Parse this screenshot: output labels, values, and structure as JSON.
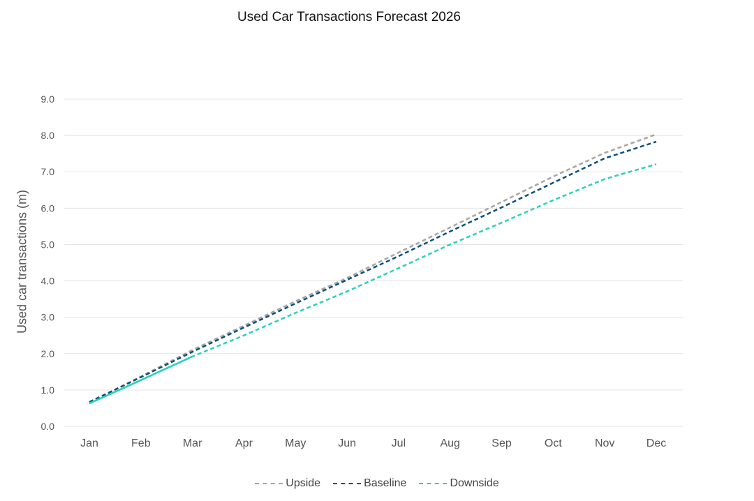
{
  "chart_data": {
    "type": "line",
    "title": "Used Car Transactions Forecast 2026",
    "xlabel": "",
    "ylabel": "Used car transactions (m)",
    "categories": [
      "Jan",
      "Feb",
      "Mar",
      "Apr",
      "May",
      "Jun",
      "Jul",
      "Aug",
      "Sep",
      "Oct",
      "Nov",
      "Dec"
    ],
    "ylim": [
      0,
      9
    ],
    "yticks": [
      "0.0",
      "1.0",
      "2.0",
      "3.0",
      "4.0",
      "5.0",
      "6.0",
      "7.0",
      "8.0",
      "9.0"
    ],
    "grid": true,
    "legend_position": "bottom",
    "actual": {
      "color": "#2ad1b8",
      "values": [
        0.63,
        1.27,
        1.92
      ]
    },
    "series": [
      {
        "name": "Upside",
        "color": "#a6a6a6",
        "values": [
          0.65,
          1.37,
          2.1,
          2.77,
          3.44,
          4.08,
          4.78,
          5.47,
          6.17,
          6.87,
          7.52,
          8.03
        ]
      },
      {
        "name": "Baseline",
        "color": "#0b4f7c",
        "values": [
          0.67,
          1.35,
          2.05,
          2.72,
          3.38,
          4.03,
          4.68,
          5.36,
          6.02,
          6.7,
          7.37,
          7.83
        ]
      },
      {
        "name": "Downside",
        "color": "#2ad1b8",
        "values": [
          0.63,
          1.27,
          1.92,
          2.5,
          3.12,
          3.71,
          4.35,
          5.0,
          5.6,
          6.22,
          6.8,
          7.21
        ]
      }
    ]
  }
}
